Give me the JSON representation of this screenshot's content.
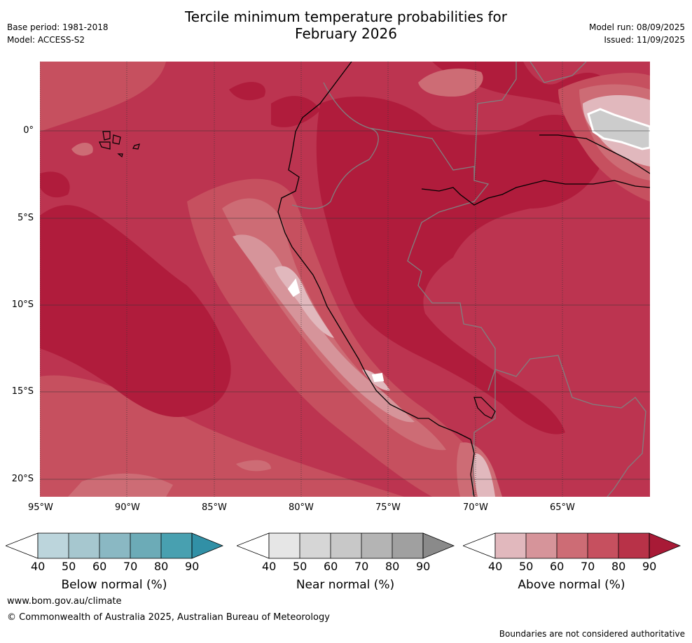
{
  "header": {
    "title_line1": "Tercile minimum temperature probabilities for",
    "title_line2": "February 2026",
    "base_period": "Base period: 1981-2018",
    "model": "Model: ACCESS-S2",
    "model_run": "Model run: 08/09/2025",
    "issued": "Issued: 11/09/2025"
  },
  "map": {
    "lon_labels": [
      "95°W",
      "90°W",
      "85°W",
      "80°W",
      "75°W",
      "70°W",
      "65°W"
    ],
    "lat_labels": [
      "0°",
      "5°S",
      "10°S",
      "15°S",
      "20°S"
    ],
    "colors": {
      "a90": "#b01c3c",
      "a80": "#bc3450",
      "a70": "#c6505f",
      "a60": "#cd6c75",
      "a50": "#d6949a",
      "a40": "#e1b8bd",
      "near60": "#cccccc",
      "land_line": "#000000",
      "border": "#808080",
      "grid": "#333333"
    }
  },
  "colorbars": [
    {
      "name": "below",
      "label": "Below normal (%)",
      "ticks": [
        "40",
        "50",
        "60",
        "70",
        "80",
        "90"
      ],
      "colors": [
        "#bcd5dc",
        "#a6c7cf",
        "#8ab8c3",
        "#6cabb7",
        "#48a0b0",
        "#3190a6"
      ]
    },
    {
      "name": "near",
      "label": "Near normal (%)",
      "ticks": [
        "40",
        "50",
        "60",
        "70",
        "80",
        "90"
      ],
      "colors": [
        "#e6e6e6",
        "#d6d6d6",
        "#c8c8c8",
        "#b4b4b4",
        "#a0a0a0",
        "#8a8a8a"
      ]
    },
    {
      "name": "above",
      "label": "Above normal (%)",
      "ticks": [
        "40",
        "50",
        "60",
        "70",
        "80",
        "90"
      ],
      "colors": [
        "#e1b8bd",
        "#d6949a",
        "#cd6c75",
        "#c6505f",
        "#b83248",
        "#a81a36"
      ]
    }
  ],
  "footer": {
    "url": "www.bom.gov.au/climate",
    "copyright": "© Commonwealth of Australia 2025, Australian Bureau of Meteorology",
    "disclaimer": "Boundaries are not considered authoritative"
  }
}
